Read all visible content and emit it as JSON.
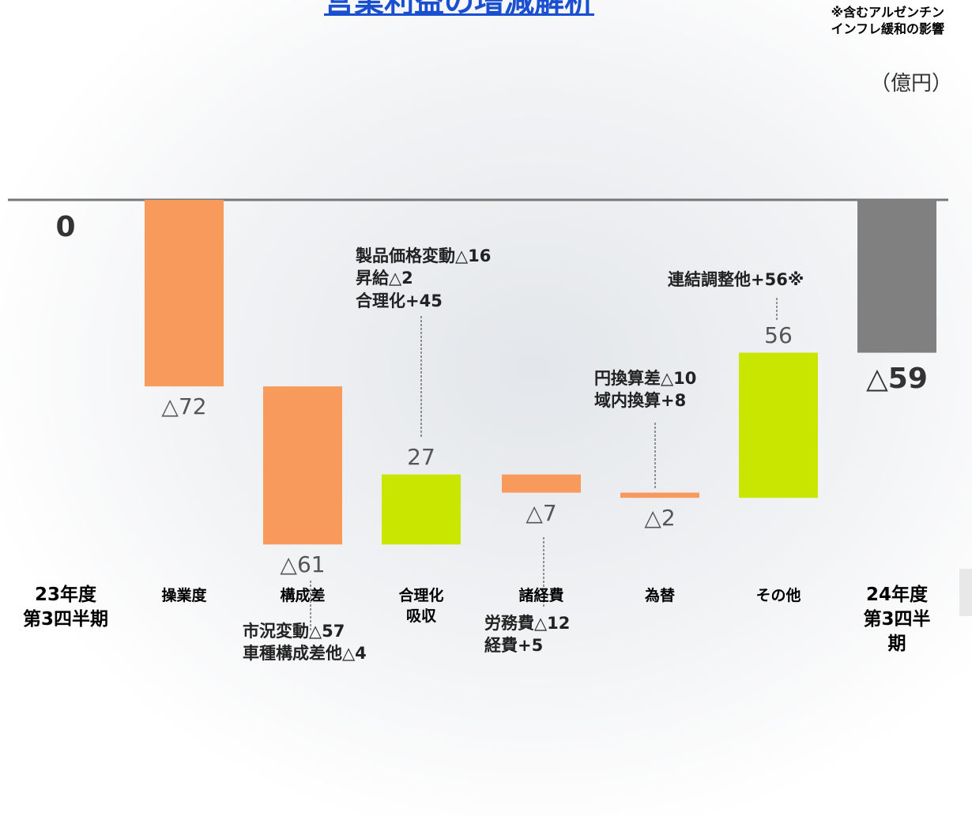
{
  "chart_data": {
    "type": "waterfall",
    "title": "営業利益の増減解析",
    "note": "※含むアルゼンチン\nインフレ緩和の影響",
    "unit": "（億円）",
    "categories": [
      "23年度\n第3四半期",
      "操業度",
      "構成差",
      "合理化\n吸収",
      "諸経費",
      "為替",
      "その他",
      "24年度\n第3四半期"
    ],
    "values": [
      0,
      -72,
      -61,
      27,
      -7,
      -2,
      56,
      -59
    ],
    "value_labels": [
      "0",
      "△72",
      "△61",
      "27",
      "△7",
      "△2",
      "56",
      "△59"
    ],
    "kinds": [
      "total",
      "delta",
      "delta",
      "delta",
      "delta",
      "delta",
      "delta",
      "total"
    ],
    "colors": {
      "decrease": "#f79a5b",
      "increase": "#c8e600",
      "total": "#808080"
    },
    "ylim": [
      -150,
      0
    ],
    "annotations": [
      {
        "category": 3,
        "text": "製品価格変動△16\n昇給△2\n合理化+45"
      },
      {
        "category": 2,
        "text": "市況変動△57\n車種構成差他△4"
      },
      {
        "category": 4,
        "text": "労務費△12\n経費+5"
      },
      {
        "category": 5,
        "text": "円換算差△10\n域内換算+8"
      },
      {
        "category": 6,
        "text": "連結調整他+56※"
      }
    ]
  }
}
